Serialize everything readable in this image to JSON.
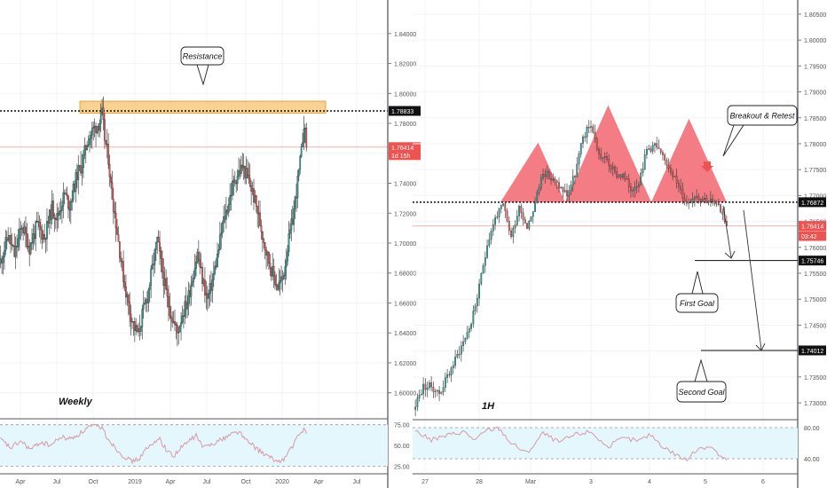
{
  "colors": {
    "up": "#26a69a",
    "down": "#ef5350",
    "rsi_line": "#d99aa5",
    "rsi_band": "#e3f7fc",
    "pattern_fill": "#f26670",
    "zone_fill": "#f6c170",
    "zone_border": "#f0a030",
    "grid": "#f0f3fa"
  },
  "chart_data": [
    {
      "type": "candlestick",
      "label": "Weekly",
      "x_ticks": [
        "Apr",
        "Jul",
        "Oct",
        "2019",
        "Apr",
        "Jul",
        "Oct",
        "2020",
        "Apr",
        "Jul"
      ],
      "y_ticks": [
        "1.84000",
        "1.82000",
        "1.80000",
        "1.78000",
        "1.76000",
        "1.74000",
        "1.72000",
        "1.70000",
        "1.68000",
        "1.66000",
        "1.64000",
        "1.62000",
        "1.60000"
      ],
      "ylim": [
        1.585,
        1.8565
      ],
      "resistance_label": "Resistance",
      "resistance_level": 1.78833,
      "resistance_zone": [
        1.7868,
        1.7948
      ],
      "price_tags": [
        {
          "text": "1.78833",
          "value": 1.78833,
          "style": "black"
        },
        {
          "text": "1.76414",
          "value": 1.76414,
          "style": "red"
        },
        {
          "text": "1d 15h",
          "value": 1.7588,
          "style": "red"
        }
      ],
      "last_price": 1.76414,
      "close_path": [
        [
          0,
          1.688
        ],
        [
          6,
          1.705
        ],
        [
          11,
          1.692
        ],
        [
          17,
          1.712
        ],
        [
          23,
          1.697
        ],
        [
          29,
          1.712
        ],
        [
          35,
          1.704
        ],
        [
          41,
          1.724
        ],
        [
          45,
          1.717
        ],
        [
          51,
          1.733
        ],
        [
          55,
          1.725
        ],
        [
          61,
          1.746
        ],
        [
          65,
          1.753
        ],
        [
          69,
          1.768
        ],
        [
          74,
          1.776
        ],
        [
          79,
          1.781
        ],
        [
          81,
          1.786
        ],
        [
          83,
          1.77
        ],
        [
          86,
          1.757
        ],
        [
          88,
          1.738
        ],
        [
          91,
          1.72
        ],
        [
          95,
          1.695
        ],
        [
          99,
          1.672
        ],
        [
          103,
          1.655
        ],
        [
          107,
          1.643
        ],
        [
          110,
          1.639
        ],
        [
          113,
          1.652
        ],
        [
          117,
          1.664
        ],
        [
          121,
          1.683
        ],
        [
          125,
          1.702
        ],
        [
          129,
          1.681
        ],
        [
          133,
          1.662
        ],
        [
          137,
          1.65
        ],
        [
          141,
          1.64
        ],
        [
          145,
          1.653
        ],
        [
          149,
          1.661
        ],
        [
          153,
          1.677
        ],
        [
          157,
          1.693
        ],
        [
          161,
          1.676
        ],
        [
          165,
          1.662
        ],
        [
          169,
          1.675
        ],
        [
          173,
          1.691
        ],
        [
          177,
          1.712
        ],
        [
          181,
          1.724
        ],
        [
          185,
          1.738
        ],
        [
          189,
          1.746
        ],
        [
          193,
          1.751
        ],
        [
          197,
          1.744
        ],
        [
          201,
          1.734
        ],
        [
          205,
          1.721
        ],
        [
          209,
          1.706
        ],
        [
          213,
          1.691
        ],
        [
          217,
          1.68
        ],
        [
          221,
          1.671
        ],
        [
          225,
          1.676
        ],
        [
          229,
          1.697
        ],
        [
          233,
          1.716
        ],
        [
          237,
          1.741
        ],
        [
          240,
          1.76
        ],
        [
          242,
          1.781
        ],
        [
          244,
          1.764
        ]
      ],
      "rsi": {
        "levels": [
          "75.00",
          "50.00",
          "25.00"
        ],
        "ylim": [
          19,
          80
        ],
        "points": [
          [
            0,
            57
          ],
          [
            8,
            47
          ],
          [
            16,
            55
          ],
          [
            24,
            45
          ],
          [
            32,
            54
          ],
          [
            40,
            50
          ],
          [
            48,
            60
          ],
          [
            56,
            58
          ],
          [
            64,
            65
          ],
          [
            70,
            72
          ],
          [
            76,
            73
          ],
          [
            81,
            72
          ],
          [
            84,
            62
          ],
          [
            90,
            50
          ],
          [
            96,
            40
          ],
          [
            104,
            31
          ],
          [
            110,
            33
          ],
          [
            116,
            45
          ],
          [
            122,
            52
          ],
          [
            126,
            60
          ],
          [
            132,
            45
          ],
          [
            138,
            37
          ],
          [
            144,
            47
          ],
          [
            150,
            55
          ],
          [
            156,
            62
          ],
          [
            162,
            47
          ],
          [
            168,
            52
          ],
          [
            176,
            57
          ],
          [
            184,
            64
          ],
          [
            190,
            67
          ],
          [
            196,
            56
          ],
          [
            202,
            49
          ],
          [
            208,
            42
          ],
          [
            214,
            36
          ],
          [
            220,
            31
          ],
          [
            226,
            33
          ],
          [
            232,
            47
          ],
          [
            238,
            62
          ],
          [
            242,
            70
          ],
          [
            244,
            67
          ]
        ]
      }
    },
    {
      "type": "candlestick",
      "label": "1H",
      "x_ticks": [
        "27",
        "28",
        "Mar",
        "3",
        "4",
        "5",
        "6"
      ],
      "y_ticks": [
        "1.80500",
        "1.80000",
        "1.79500",
        "1.79000",
        "1.78500",
        "1.78000",
        "1.77500",
        "1.77000",
        "1.76500",
        "1.76000",
        "1.75500",
        "1.75000",
        "1.74500",
        "1.74000",
        "1.73500",
        "1.73000"
      ],
      "ylim": [
        1.7283,
        1.8067
      ],
      "level": 1.76872,
      "price_tags": [
        {
          "text": "1.76872",
          "value": 1.76872,
          "style": "black"
        },
        {
          "text": "1.76414",
          "value": 1.76414,
          "style": "red"
        },
        {
          "text": "03:42",
          "value": 1.7622,
          "style": "red"
        },
        {
          "text": "1.75746",
          "value": 1.75746,
          "style": "black"
        },
        {
          "text": "1.74012",
          "value": 1.74012,
          "style": "black"
        }
      ],
      "last_price": 1.76414,
      "annotations": [
        "Breakout & Retest",
        "First Goal",
        "Second Goal"
      ],
      "first_goal": 1.75746,
      "second_goal": 1.74012,
      "head_and_shoulders": [
        [
          0,
          1.76872
        ],
        [
          7,
          1.78023
        ],
        [
          12,
          1.76872
        ],
        [
          20,
          1.78744
        ],
        [
          28,
          1.76872
        ],
        [
          35,
          1.78483
        ],
        [
          42,
          1.76872
        ]
      ],
      "close_path": [
        [
          0,
          1.7298
        ],
        [
          4,
          1.7331
        ],
        [
          8,
          1.7332
        ],
        [
          12,
          1.7318
        ],
        [
          16,
          1.7351
        ],
        [
          20,
          1.7383
        ],
        [
          24,
          1.7418
        ],
        [
          28,
          1.7455
        ],
        [
          32,
          1.7522
        ],
        [
          36,
          1.7608
        ],
        [
          40,
          1.7657
        ],
        [
          44,
          1.768
        ],
        [
          48,
          1.762
        ],
        [
          52,
          1.768
        ],
        [
          56,
          1.764
        ],
        [
          60,
          1.7685
        ],
        [
          64,
          1.7748
        ],
        [
          68,
          1.7732
        ],
        [
          72,
          1.7718
        ],
        [
          76,
          1.7702
        ],
        [
          80,
          1.774
        ],
        [
          84,
          1.7812
        ],
        [
          88,
          1.7838
        ],
        [
          92,
          1.7778
        ],
        [
          96,
          1.7768
        ],
        [
          100,
          1.7742
        ],
        [
          104,
          1.7738
        ],
        [
          108,
          1.7712
        ],
        [
          112,
          1.7728
        ],
        [
          116,
          1.7788
        ],
        [
          120,
          1.7798
        ],
        [
          124,
          1.7772
        ],
        [
          128,
          1.7752
        ],
        [
          132,
          1.7715
        ],
        [
          136,
          1.7685
        ],
        [
          140,
          1.7702
        ],
        [
          144,
          1.7695
        ],
        [
          148,
          1.769
        ],
        [
          152,
          1.7675
        ],
        [
          154,
          1.7668
        ],
        [
          156,
          1.7641
        ]
      ],
      "rsi": {
        "levels": [
          "80.00",
          "40.00"
        ],
        "ylim": [
          24,
          88
        ],
        "points": [
          [
            0,
            76
          ],
          [
            8,
            64
          ],
          [
            16,
            70
          ],
          [
            24,
            75
          ],
          [
            30,
            64
          ],
          [
            36,
            77
          ],
          [
            42,
            79
          ],
          [
            48,
            60
          ],
          [
            56,
            47
          ],
          [
            64,
            73
          ],
          [
            72,
            61
          ],
          [
            80,
            71
          ],
          [
            88,
            75
          ],
          [
            96,
            55
          ],
          [
            104,
            66
          ],
          [
            112,
            63
          ],
          [
            118,
            71
          ],
          [
            124,
            56
          ],
          [
            130,
            46
          ],
          [
            136,
            38
          ],
          [
            142,
            54
          ],
          [
            148,
            56
          ],
          [
            152,
            45
          ],
          [
            156,
            37
          ]
        ]
      }
    }
  ]
}
